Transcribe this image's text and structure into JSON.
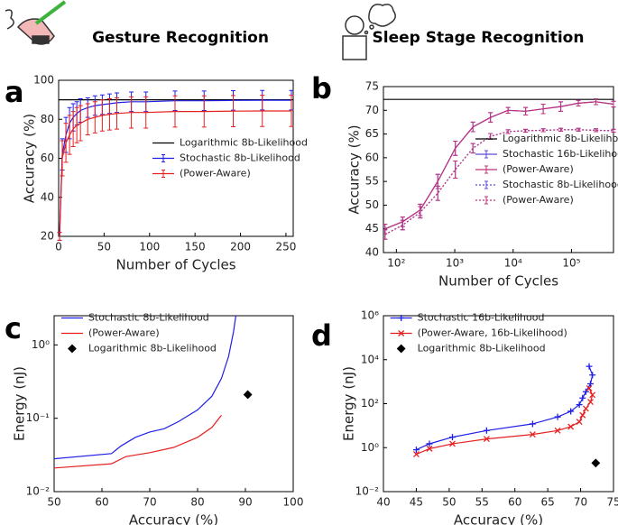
{
  "header": {
    "left_title": "Gesture Recognition",
    "right_title": "Sleep Stage Recognition"
  },
  "chart_data": [
    {
      "type": "line",
      "label": "a",
      "xlabel": "Number of Cycles",
      "ylabel": "Accuracy (%)",
      "xlim": [
        0,
        258
      ],
      "ylim": [
        20,
        100
      ],
      "xticks": [
        0,
        50,
        100,
        150,
        200,
        250
      ],
      "yticks": [
        20,
        40,
        60,
        80,
        100
      ],
      "legend": "center right",
      "series": [
        {
          "name": "Logarithmic 8b-Likelihood",
          "color": "#000000",
          "x": [
            0,
            258
          ],
          "values": [
            90,
            90
          ]
        },
        {
          "name": "Stochastic 8b-Likelihood",
          "color": "#1f1fe6",
          "x": [
            1,
            4,
            8,
            12,
            16,
            20,
            24,
            32,
            40,
            48,
            56,
            64,
            80,
            96,
            128,
            160,
            192,
            224,
            256
          ],
          "values": [
            20,
            62,
            72,
            78,
            81,
            83,
            84.5,
            86,
            87,
            87.5,
            88,
            88.5,
            89,
            89,
            89.5,
            89.5,
            89.7,
            89.8,
            89.8
          ],
          "errors": [
            2,
            8,
            9,
            8,
            7,
            6,
            6,
            5,
            5,
            5,
            5,
            5,
            5,
            5,
            5,
            5,
            5,
            5,
            5
          ]
        },
        {
          "name": "(Power-Aware)",
          "color": "#e62020",
          "x": [
            1,
            4,
            8,
            12,
            16,
            20,
            24,
            32,
            40,
            48,
            56,
            64,
            80,
            96,
            128,
            160,
            192,
            224,
            256
          ],
          "values": [
            20,
            60,
            68,
            72,
            75,
            77,
            78,
            80,
            81,
            82,
            82.5,
            83,
            83.5,
            83.5,
            84,
            84,
            84.2,
            84.3,
            84.3
          ],
          "errors": [
            2,
            9,
            10,
            10,
            9,
            9,
            9,
            8,
            8,
            8,
            8,
            8,
            8,
            8,
            8,
            8,
            8,
            8,
            8
          ]
        }
      ]
    },
    {
      "type": "line",
      "label": "b",
      "xlabel": "Number of Cycles",
      "ylabel": "Accuracy (%)",
      "xscale": "log",
      "xlim": [
        60,
        524288
      ],
      "ylim": [
        40,
        75
      ],
      "xticks": [
        {
          "value": 100,
          "label": "10²"
        },
        {
          "value": 1000,
          "label": "10³"
        },
        {
          "value": 10000,
          "label": "10⁴"
        },
        {
          "value": 100000,
          "label": "10⁵"
        }
      ],
      "yticks": [
        40,
        45,
        50,
        55,
        60,
        65,
        70,
        75
      ],
      "legend": "right",
      "series": [
        {
          "name": "Logarithmic 8b-Likelihood",
          "color": "#000000",
          "x": [
            60,
            524288
          ],
          "values": [
            72.3,
            72.3
          ]
        },
        {
          "name": "Stochastic 16b-Likelihood",
          "color": "#5a4ad6",
          "x": [
            64,
            128,
            256,
            512,
            1024,
            2048,
            4096,
            8192,
            16384,
            32768,
            65536,
            131072,
            262144,
            524288
          ],
          "values": [
            45,
            46.5,
            49,
            55,
            62,
            66.5,
            68.5,
            70,
            69.8,
            70.3,
            70.8,
            71.5,
            71.8,
            71.3
          ],
          "errors": [
            1,
            1,
            1.2,
            1.5,
            1.5,
            1,
            1,
            0.6,
            0.8,
            1,
            1,
            0.6,
            0.6,
            0.6
          ]
        },
        {
          "name": "(Power-Aware)",
          "color": "#c0307a",
          "x": [
            64,
            128,
            256,
            512,
            1024,
            2048,
            4096,
            8192,
            16384,
            32768,
            65536,
            131072,
            262144,
            524288
          ],
          "values": [
            45,
            46.5,
            49,
            55,
            62,
            66.5,
            68.5,
            70,
            69.8,
            70.3,
            70.8,
            71.5,
            71.8,
            71.3
          ],
          "errors": [
            1,
            1,
            1.2,
            1.5,
            1.5,
            1,
            1,
            0.6,
            0.8,
            1,
            1,
            0.6,
            0.6,
            0.6
          ]
        },
        {
          "name": "Stochastic 8b-Likelihood",
          "color": "#5a4ad6",
          "dash": true,
          "x": [
            64,
            128,
            256,
            512,
            1024,
            2048,
            4096,
            8192,
            16384,
            32768,
            65536,
            131072,
            262144,
            524288
          ],
          "values": [
            43.8,
            45.8,
            48.5,
            52.5,
            57.5,
            62,
            64.5,
            65.5,
            65.7,
            65.8,
            65.9,
            65.9,
            65.8,
            65.7
          ],
          "errors": [
            1,
            1,
            1.2,
            1.5,
            1.8,
            1,
            0.6,
            0.4,
            0.3,
            0.3,
            0.3,
            0.3,
            0.3,
            0.3
          ]
        },
        {
          "name": "(Power-Aware)",
          "color": "#c0307a",
          "dash": true,
          "x": [
            64,
            128,
            256,
            512,
            1024,
            2048,
            4096,
            8192,
            16384,
            32768,
            65536,
            131072,
            262144,
            524288
          ],
          "values": [
            43.8,
            45.8,
            48.5,
            52.5,
            57.5,
            62,
            64.5,
            65.5,
            65.7,
            65.8,
            65.9,
            65.9,
            65.8,
            65.7
          ],
          "errors": [
            1,
            1,
            1.2,
            1.5,
            1.8,
            1,
            0.6,
            0.4,
            0.3,
            0.3,
            0.3,
            0.3,
            0.3,
            0.3
          ]
        }
      ]
    },
    {
      "type": "line",
      "label": "c",
      "xlabel": "Accuracy (%)",
      "ylabel": "Energy (nJ)",
      "yscale": "log",
      "xlim": [
        50,
        100
      ],
      "ylim": [
        0.01,
        2.5
      ],
      "xticks": [
        50,
        60,
        70,
        80,
        90,
        100
      ],
      "yticks": [
        {
          "value": 0.01,
          "label": "10⁻²"
        },
        {
          "value": 0.1,
          "label": "10⁻¹"
        },
        {
          "value": 1,
          "label": "10⁰"
        }
      ],
      "legend": "upper left",
      "series": [
        {
          "name": "Stochastic 8b-Likelihood",
          "color": "#1f1fe6",
          "x": [
            50,
            62,
            64,
            67,
            70,
            73,
            76,
            80,
            83,
            85,
            86.5,
            87.5,
            88
          ],
          "values": [
            0.028,
            0.033,
            0.042,
            0.055,
            0.065,
            0.072,
            0.09,
            0.13,
            0.2,
            0.35,
            0.7,
            1.5,
            2.5
          ]
        },
        {
          "name": "(Power-Aware)",
          "color": "#e62020",
          "x": [
            50,
            62,
            65,
            70,
            75,
            80,
            83,
            85
          ],
          "values": [
            0.021,
            0.024,
            0.03,
            0.034,
            0.04,
            0.055,
            0.075,
            0.11
          ]
        },
        {
          "name": "Logarithmic 8b-Likelihood",
          "color": "#000000",
          "marker": "diamond",
          "linestyle": "none",
          "x": [
            90.5
          ],
          "values": [
            0.21
          ]
        }
      ]
    },
    {
      "type": "line",
      "label": "d",
      "xlabel": "Accuracy (%)",
      "ylabel": "Energy (nJ)",
      "yscale": "log",
      "xlim": [
        40,
        75
      ],
      "ylim": [
        0.01,
        1000000
      ],
      "xticks": [
        40,
        45,
        50,
        55,
        60,
        65,
        70,
        75
      ],
      "yticks": [
        {
          "value": 0.01,
          "label": "10⁻²"
        },
        {
          "value": 1,
          "label": "10⁰"
        },
        {
          "value": 100,
          "label": "10²"
        },
        {
          "value": 10000,
          "label": "10⁴"
        },
        {
          "value": 1000000,
          "label": "10⁶"
        }
      ],
      "legend": "upper left",
      "series": [
        {
          "name": "Stochastic 16b-Likelihood",
          "color": "#1f1fe6",
          "marker": "plus",
          "x": [
            45,
            47,
            50.5,
            55.7,
            62.7,
            66.5,
            68.5,
            69.8,
            70.3,
            70.8,
            71.5,
            71.8,
            71.3
          ],
          "values": [
            0.8,
            1.5,
            3,
            6,
            12,
            25,
            45,
            90,
            180,
            350,
            800,
            2000,
            5000
          ]
        },
        {
          "name": "(Power-Aware, 16b-Likelihood)",
          "color": "#e62020",
          "marker": "cross",
          "x": [
            45,
            47,
            50.5,
            55.7,
            62.7,
            66.5,
            68.5,
            69.8,
            70.3,
            70.8,
            71.5,
            71.8,
            71.3
          ],
          "values": [
            0.5,
            0.9,
            1.5,
            2.5,
            4,
            6,
            9,
            15,
            30,
            60,
            120,
            250,
            500
          ]
        },
        {
          "name": "Logarithmic 8b-Likelihood",
          "color": "#000000",
          "marker": "diamond",
          "linestyle": "none",
          "x": [
            72.3
          ],
          "values": [
            0.2
          ]
        }
      ]
    }
  ]
}
